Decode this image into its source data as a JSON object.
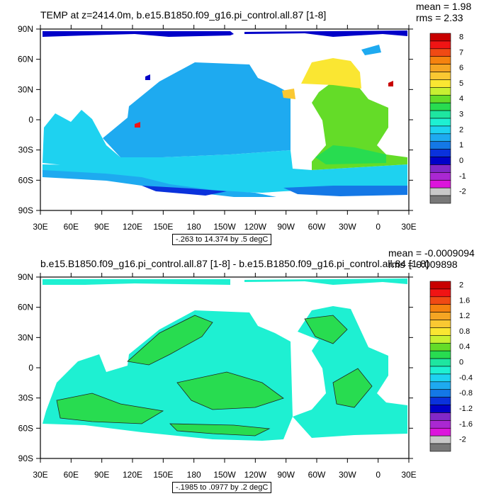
{
  "chart_data": [
    {
      "type": "heatmap",
      "title": "TEMP at z=2414.0m, b.e15.B1850.f09_g16.pi_control.all.87 [1-8]",
      "stats": {
        "mean_label": "mean = 1.98",
        "rms_label": "rms = 2.33"
      },
      "contour_info": "-.263 to 14.374 by .5 degC",
      "xticks": [
        "30E",
        "60E",
        "90E",
        "120E",
        "150E",
        "180",
        "150W",
        "120W",
        "90W",
        "60W",
        "30W",
        "0",
        "30E"
      ],
      "yticks": [
        "90N",
        "60N",
        "30N",
        "0",
        "30S",
        "60S",
        "90S"
      ],
      "colorbar": {
        "labels": [
          "8",
          "7",
          "6",
          "5",
          "4",
          "3",
          "2",
          "1",
          "0",
          "-1",
          "-2"
        ],
        "colors": [
          "#c80000",
          "#f01414",
          "#f04a14",
          "#f5820f",
          "#f5a523",
          "#fac832",
          "#fae632",
          "#c8f032",
          "#64dc28",
          "#28dc50",
          "#1ee6a0",
          "#1ef0d2",
          "#1ed2f0",
          "#1eaaf0",
          "#1478e6",
          "#0a32dc",
          "#0000c8",
          "#8228c8",
          "#aa28d2",
          "#dc14dc",
          "#c8c8c8",
          "#787878"
        ]
      },
      "regions": {
        "arctic": "#0000c8",
        "pacific": "#1eaaf0",
        "indian": "#1ed2f0",
        "southern": "#1ed2f0",
        "atlantic_south": "#28dc50",
        "atlantic_north": "#64dc28",
        "subpolar_north_atlantic": "#fae632",
        "antarctic_shelf": "#0a32dc"
      }
    },
    {
      "type": "heatmap",
      "title": "b.e15.B1850.f09_g16.pi_control.all.87 [1-8] - b.e15.B1850.f09_g16.pi_control.all.84 [1-8]",
      "stats": {
        "mean_label": "mean = -0.0009094",
        "rms_label": "rms = 0.009898"
      },
      "contour_info": "-.1985 to .0977 by .2 degC",
      "xticks": [
        "30E",
        "60E",
        "90E",
        "120E",
        "150E",
        "180",
        "150W",
        "120W",
        "90W",
        "60W",
        "30W",
        "0",
        "30E"
      ],
      "yticks": [
        "90N",
        "60N",
        "30N",
        "0",
        "30S",
        "60S",
        "90S"
      ],
      "colorbar": {
        "labels": [
          "2",
          "1.6",
          "1.2",
          "0.8",
          "0.4",
          "0",
          "-0.4",
          "-0.8",
          "-1.2",
          "-1.6",
          "-2"
        ],
        "colors": [
          "#c80000",
          "#f01414",
          "#f04a14",
          "#f5820f",
          "#f5a523",
          "#fac832",
          "#fae632",
          "#c8f032",
          "#64dc28",
          "#28dc50",
          "#1ee6a0",
          "#1ef0d2",
          "#1ed2f0",
          "#1eaaf0",
          "#1478e6",
          "#0a32dc",
          "#0000c8",
          "#8228c8",
          "#aa28d2",
          "#dc14dc",
          "#c8c8c8",
          "#787878"
        ]
      },
      "regions": {
        "ocean_base": "#1ef0d2",
        "positive_patch": "#28dc50"
      }
    }
  ]
}
